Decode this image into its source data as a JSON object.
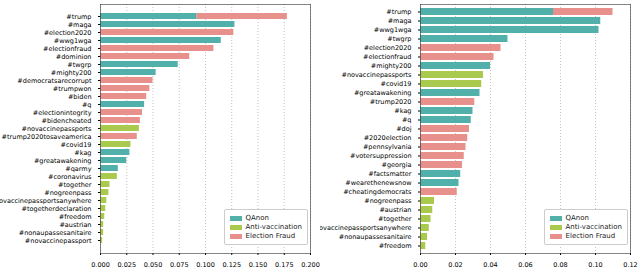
{
  "chart_data": [
    {
      "type": "bar",
      "orientation": "horizontal",
      "stacked": true,
      "grid": true,
      "legend": "lower right",
      "categories": [
        "#trump",
        "#maga",
        "#election2020",
        "#wwg1wga",
        "#electionfraud",
        "#dominion",
        "#twgrp",
        "#mighty200",
        "#democratsarecorrupt",
        "#trumpwon",
        "#biden",
        "#q",
        "#electionintegrity",
        "#bidencheated",
        "#novaccinepassports",
        "#trump2020tosaveamerica",
        "#covid19",
        "#kag",
        "#greatawakening",
        "#qarmy",
        "#coronavirus",
        "#together",
        "#nogreenpass",
        "#novaccinepassportsanywhere",
        "#togetherdeclaration",
        "#freedom",
        "#austrian",
        "#nonaupassesanitaire",
        "#novaccinepassport"
      ],
      "series": [
        {
          "name": "QAnon",
          "color": "#52b0aa",
          "values": [
            0.092,
            0.128,
            null,
            0.115,
            null,
            null,
            0.074,
            0.053,
            null,
            null,
            null,
            0.042,
            null,
            null,
            null,
            null,
            null,
            0.028,
            0.025,
            0.017,
            null,
            null,
            null,
            null,
            null,
            null,
            null,
            null,
            null
          ]
        },
        {
          "name": "Anti-vaccination",
          "color": "#a9c94f",
          "values": [
            null,
            null,
            null,
            null,
            null,
            null,
            null,
            null,
            null,
            null,
            null,
            null,
            null,
            null,
            0.037,
            null,
            0.029,
            null,
            null,
            null,
            0.016,
            0.009,
            0.008,
            0.006,
            0.005,
            0.004,
            0.003,
            0.003,
            0.002
          ]
        },
        {
          "name": "Election Fraud",
          "color": "#e8908b",
          "values": [
            0.086,
            null,
            0.127,
            null,
            0.108,
            0.085,
            null,
            null,
            0.05,
            0.047,
            0.044,
            null,
            0.04,
            0.038,
            null,
            0.035,
            null,
            null,
            null,
            null,
            null,
            null,
            null,
            null,
            null,
            null,
            null,
            null,
            null
          ]
        }
      ],
      "xlim": [
        0,
        0.2
      ],
      "xticks": [
        {
          "value": 0,
          "label": "0.000"
        },
        {
          "value": 0.025,
          "label": "0.025"
        },
        {
          "value": 0.05,
          "label": "0.050"
        },
        {
          "value": 0.075,
          "label": "0.075"
        },
        {
          "value": 0.1,
          "label": "0.100"
        },
        {
          "value": 0.125,
          "label": "0.125"
        },
        {
          "value": 0.15,
          "label": "0.150"
        },
        {
          "value": 0.175,
          "label": "0.175"
        },
        {
          "value": 0.2,
          "label": "0.200"
        }
      ]
    },
    {
      "type": "bar",
      "orientation": "horizontal",
      "stacked": true,
      "grid": true,
      "legend": "lower right",
      "categories": [
        "#trump",
        "#maga",
        "#wwg1wga",
        "#twgrp",
        "#election2020",
        "#electionfraud",
        "#mighty200",
        "#novaccinepassports",
        "#covid19",
        "#greatawakening",
        "#trump2020",
        "#kag",
        "#q",
        "#doj",
        "#2020election",
        "#pennsylvania",
        "#votersuppression",
        "#georgia",
        "#factsmatter",
        "#wearethenewsnow",
        "#cheatingdemocrats",
        "#nogreenpass",
        "#austrian",
        "#together",
        "#novaccinepassportsanywhere",
        "#nonaupassesanitaire",
        "#freedom"
      ],
      "series": [
        {
          "name": "QAnon",
          "color": "#52b0aa",
          "values": [
            0.076,
            0.103,
            0.102,
            0.05,
            null,
            null,
            0.04,
            null,
            null,
            0.034,
            null,
            0.03,
            0.029,
            null,
            null,
            null,
            null,
            null,
            0.023,
            0.022,
            null,
            null,
            null,
            null,
            null,
            null,
            null
          ]
        },
        {
          "name": "Anti-vaccination",
          "color": "#a9c94f",
          "values": [
            null,
            null,
            null,
            null,
            null,
            null,
            null,
            0.036,
            0.035,
            null,
            null,
            null,
            null,
            null,
            null,
            null,
            null,
            null,
            null,
            null,
            null,
            0.008,
            0.007,
            0.006,
            0.005,
            0.004,
            0.003
          ]
        },
        {
          "name": "Election Fraud",
          "color": "#e8908b",
          "values": [
            0.034,
            null,
            null,
            null,
            0.046,
            0.042,
            null,
            null,
            null,
            null,
            0.031,
            null,
            null,
            0.028,
            0.027,
            0.026,
            0.025,
            0.024,
            null,
            null,
            0.021,
            null,
            null,
            null,
            null,
            null,
            null
          ]
        }
      ],
      "xlim": [
        0,
        0.12
      ],
      "xticks": [
        {
          "value": 0,
          "label": "0.00"
        },
        {
          "value": 0.02,
          "label": "0.02"
        },
        {
          "value": 0.04,
          "label": "0.04"
        },
        {
          "value": 0.06,
          "label": "0.06"
        },
        {
          "value": 0.08,
          "label": "0.08"
        },
        {
          "value": 0.1,
          "label": "0.10"
        },
        {
          "value": 0.12,
          "label": "0.12"
        }
      ]
    }
  ]
}
